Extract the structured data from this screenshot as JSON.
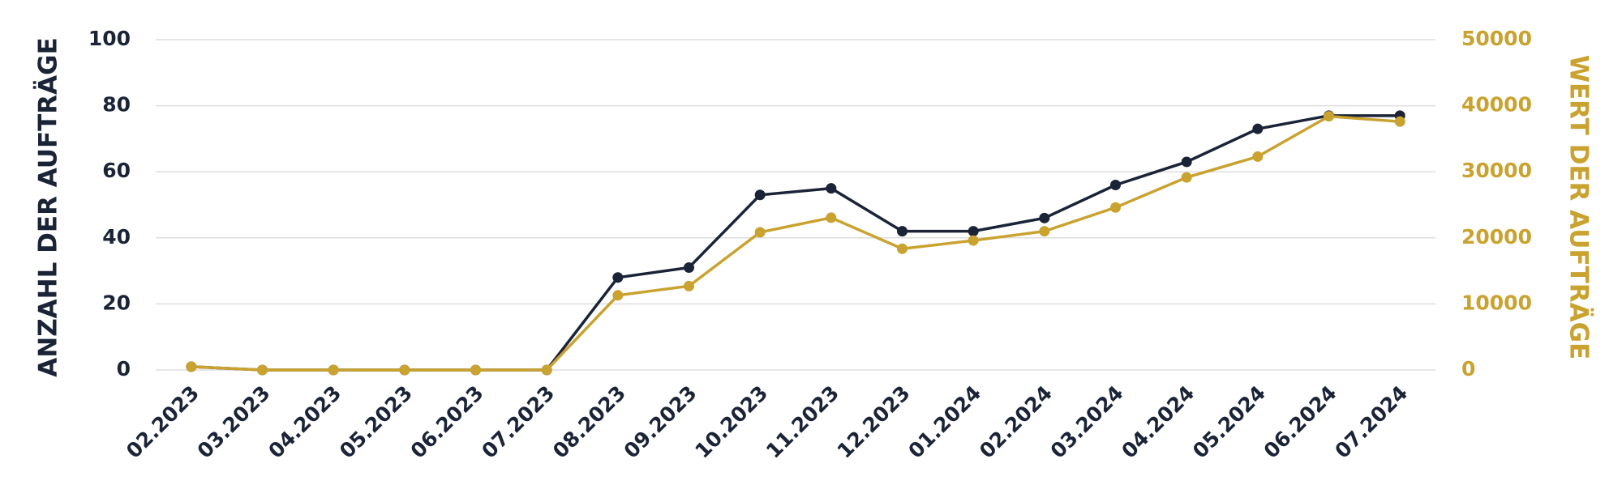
{
  "chart_data": {
    "type": "line",
    "categories": [
      "02.2023",
      "03.2023",
      "04.2023",
      "05.2023",
      "06.2023",
      "07.2023",
      "08.2023",
      "09.2023",
      "10.2023",
      "11.2023",
      "12.2023",
      "01.2024",
      "02.2024",
      "03.2024",
      "04.2024",
      "05.2024",
      "06.2024",
      "07.2024"
    ],
    "series": [
      {
        "name": "ANZAHL DER AUFTRÄGE",
        "color": "#1b2437",
        "values": [
          1,
          0,
          0,
          0,
          0,
          0,
          28,
          31,
          53,
          55,
          42,
          42,
          46,
          56,
          63,
          73,
          77,
          77
        ]
      },
      {
        "name": "WERT DER AUFTRÄGE",
        "color": "#c9a22f",
        "axis": "y2",
        "values": [
          500,
          0,
          0,
          0,
          0,
          0,
          11300,
          12700,
          20850,
          23050,
          18350,
          19600,
          21000,
          24600,
          29150,
          32300,
          38400,
          37600
        ]
      }
    ],
    "ylabel": "ANZAHL DER AUFTRÄGE",
    "y2label": "WERT DER AUFTRÄGE",
    "ylim": [
      0,
      100
    ],
    "yticks": [
      0,
      20,
      40,
      60,
      80,
      100
    ],
    "y2lim": [
      0,
      50000
    ],
    "y2ticks": [
      0,
      10000,
      20000,
      30000,
      40000,
      50000
    ],
    "grid": true
  }
}
